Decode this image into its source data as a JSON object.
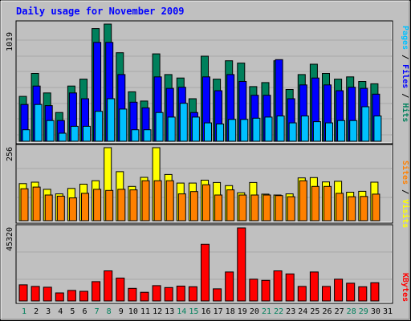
{
  "title": "Daily usage for November 2009",
  "colors": {
    "frame": "#c0c0c0",
    "title": "#0000ff",
    "hits": "#00805c",
    "files": "#0000ff",
    "pages": "#00c0ff",
    "visits": "#ffff00",
    "sites": "#ff8000",
    "kbytes": "#ff0000",
    "weekend": "#00805c",
    "weekday": "#000000"
  },
  "chart_data": [
    {
      "type": "bar",
      "panel": "top",
      "ymax_label": "1019",
      "ylim": [
        0,
        1019
      ],
      "legend": [
        "Pages",
        "Files",
        "Hits"
      ],
      "categories": [
        "1",
        "2",
        "3",
        "4",
        "5",
        "6",
        "7",
        "8",
        "9",
        "10",
        "11",
        "12",
        "13",
        "14",
        "15",
        "16",
        "17",
        "18",
        "19",
        "20",
        "21",
        "22",
        "23",
        "24",
        "25",
        "26",
        "27",
        "28",
        "29",
        "30",
        "31"
      ],
      "series": [
        {
          "name": "Hits",
          "values": [
            390,
            590,
            420,
            250,
            480,
            540,
            980,
            1019,
            770,
            430,
            350,
            760,
            580,
            550,
            370,
            740,
            540,
            700,
            680,
            475,
            510,
            700,
            450,
            580,
            670,
            590,
            540,
            560,
            520,
            500,
            0
          ]
        },
        {
          "name": "Files",
          "values": [
            320,
            480,
            310,
            180,
            420,
            370,
            860,
            860,
            580,
            340,
            290,
            560,
            460,
            470,
            250,
            560,
            440,
            580,
            520,
            400,
            400,
            710,
            370,
            490,
            550,
            490,
            440,
            470,
            460,
            410,
            0
          ]
        },
        {
          "name": "Pages",
          "values": [
            100,
            320,
            180,
            70,
            130,
            130,
            260,
            370,
            280,
            100,
            100,
            250,
            210,
            330,
            210,
            160,
            150,
            190,
            190,
            200,
            210,
            220,
            160,
            220,
            170,
            160,
            180,
            180,
            300,
            220,
            0
          ]
        }
      ]
    },
    {
      "type": "bar",
      "panel": "middle",
      "ymax_label": "256",
      "ylim": [
        0,
        256
      ],
      "legend": [
        "Sites",
        "Visits"
      ],
      "categories": [
        "1",
        "2",
        "3",
        "4",
        "5",
        "6",
        "7",
        "8",
        "9",
        "10",
        "11",
        "12",
        "13",
        "14",
        "15",
        "16",
        "17",
        "18",
        "19",
        "20",
        "21",
        "22",
        "23",
        "24",
        "25",
        "26",
        "27",
        "28",
        "29",
        "30",
        "31"
      ],
      "series": [
        {
          "name": "Visits",
          "values": [
            130,
            135,
            110,
            94,
            113,
            128,
            140,
            256,
            172,
            120,
            152,
            256,
            162,
            132,
            132,
            142,
            134,
            123,
            98,
            134,
            93,
            90,
            94,
            150,
            151,
            136,
            138,
            100,
            103,
            135,
            0
          ]
        },
        {
          "name": "Sites",
          "values": [
            112,
            118,
            90,
            86,
            80,
            96,
            110,
            106,
            110,
            108,
            140,
            140,
            140,
            94,
            102,
            126,
            90,
            108,
            90,
            90,
            90,
            88,
            84,
            140,
            120,
            120,
            96,
            84,
            85,
            93,
            0
          ]
        }
      ]
    },
    {
      "type": "bar",
      "panel": "bottom",
      "ymax_label": "45320",
      "ylim": [
        0,
        45320
      ],
      "legend": [
        "KBytes"
      ],
      "categories": [
        "1",
        "2",
        "3",
        "4",
        "5",
        "6",
        "7",
        "8",
        "9",
        "10",
        "11",
        "12",
        "13",
        "14",
        "15",
        "16",
        "17",
        "18",
        "19",
        "20",
        "21",
        "22",
        "23",
        "24",
        "25",
        "26",
        "27",
        "28",
        "29",
        "30",
        "31"
      ],
      "series": [
        {
          "name": "KBytes",
          "values": [
            10000,
            9000,
            8500,
            5000,
            6500,
            6000,
            12000,
            18700,
            14200,
            7800,
            5400,
            9500,
            8300,
            9200,
            8800,
            35200,
            7500,
            18000,
            45320,
            13500,
            12800,
            18700,
            16800,
            9000,
            18000,
            9000,
            13500,
            11000,
            8800,
            11300,
            0
          ]
        }
      ]
    }
  ],
  "x_labels": [
    "1",
    "2",
    "3",
    "4",
    "5",
    "6",
    "7",
    "8",
    "9",
    "10",
    "11",
    "12",
    "13",
    "14",
    "15",
    "16",
    "17",
    "18",
    "19",
    "20",
    "21",
    "22",
    "23",
    "24",
    "25",
    "26",
    "27",
    "28",
    "29",
    "30",
    "31"
  ],
  "weekend_days": [
    "1",
    "7",
    "8",
    "14",
    "15",
    "21",
    "22",
    "28",
    "29"
  ]
}
